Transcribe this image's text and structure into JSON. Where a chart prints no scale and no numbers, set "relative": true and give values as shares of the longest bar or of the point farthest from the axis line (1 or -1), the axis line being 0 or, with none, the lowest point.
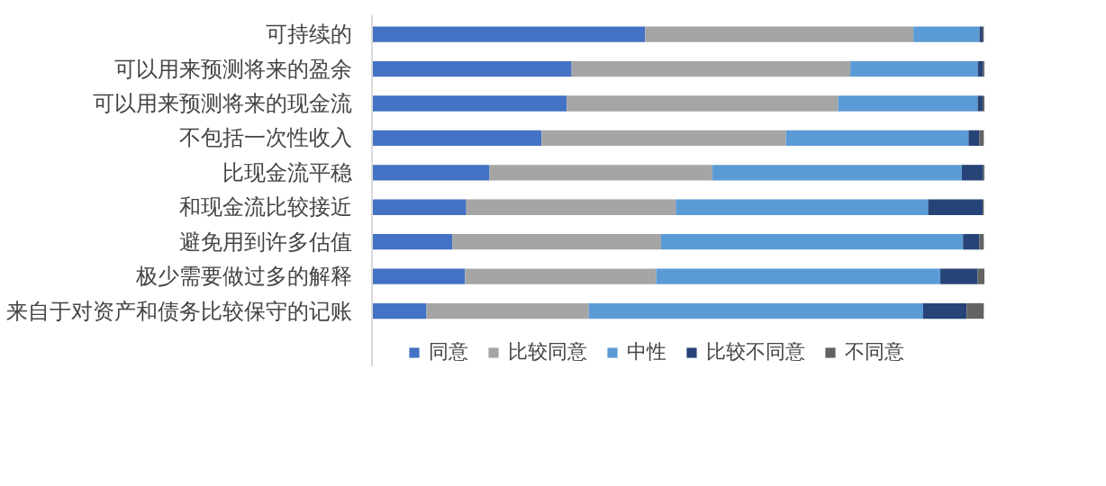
{
  "chart_data": {
    "type": "bar",
    "orientation": "horizontal",
    "stacked": true,
    "relative": true,
    "legend": "bottom",
    "grid": false,
    "categories": [
      "可持续的",
      "可以用来预测将来的盈余",
      "可以用来预测将来的现金流",
      "不包括一次性收入",
      "比现金流平稳",
      "和现金流比较接近",
      "避免用到许多估值",
      "极少需要做过多的解释",
      "来自于对资产和债务比较保守的记账"
    ],
    "series": [
      {
        "name": "同意",
        "color": "#4472c4",
        "values": [
          0.446,
          0.326,
          0.318,
          0.277,
          0.192,
          0.154,
          0.131,
          0.152,
          0.089
        ]
      },
      {
        "name": "比较同意",
        "color": "#a5a5a5",
        "values": [
          0.438,
          0.455,
          0.443,
          0.399,
          0.364,
          0.342,
          0.341,
          0.312,
          0.265
        ]
      },
      {
        "name": "中性",
        "color": "#5b9bd5",
        "values": [
          0.108,
          0.208,
          0.228,
          0.298,
          0.407,
          0.412,
          0.493,
          0.464,
          0.546
        ]
      },
      {
        "name": "比较不同意",
        "color": "#264478",
        "values": [
          0.005,
          0.009,
          0.008,
          0.018,
          0.035,
          0.089,
          0.027,
          0.061,
          0.071
        ]
      },
      {
        "name": "不同意",
        "color": "#636363",
        "values": [
          0.002,
          0.002,
          0.003,
          0.007,
          0.002,
          0.002,
          0.007,
          0.011,
          0.028
        ]
      }
    ]
  }
}
